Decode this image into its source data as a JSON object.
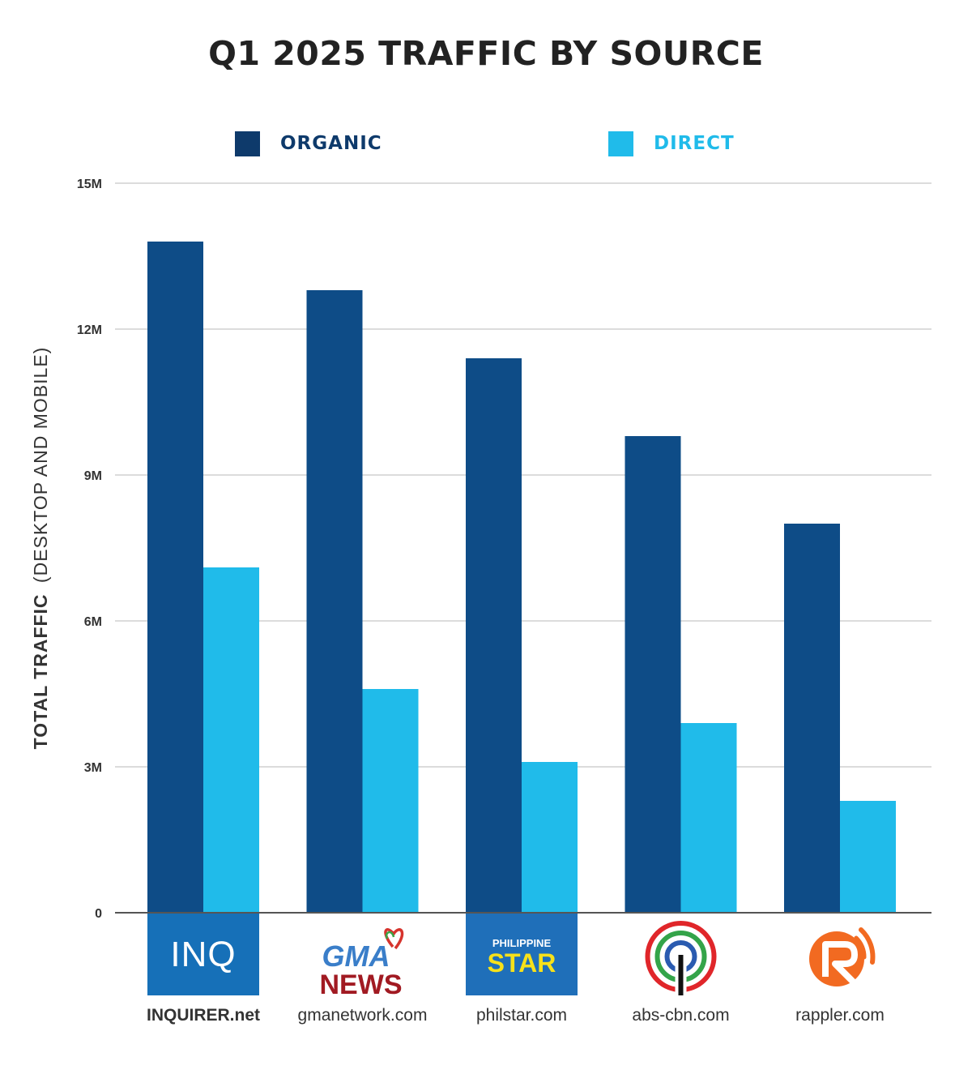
{
  "chart_data": {
    "type": "bar",
    "title": "Q1 2025 TRAFFIC BY SOURCE",
    "ylabel_bold": "TOTAL TRAFFIC",
    "ylabel_rest": "(DESKTOP AND MOBILE)",
    "ylim": [
      0,
      15000000
    ],
    "yticks": [
      0,
      3000000,
      6000000,
      9000000,
      12000000,
      15000000
    ],
    "ytick_labels": [
      "0",
      "3M",
      "6M",
      "9M",
      "12M",
      "15M"
    ],
    "grid": true,
    "legend_position": "top",
    "categories": [
      "INQUIRER.net",
      "gmanetwork.com",
      "philstar.com",
      "abs-cbn.com",
      "rappler.com"
    ],
    "series": [
      {
        "name": "ORGANIC",
        "color": "#0e4c87",
        "values": [
          13800000,
          12800000,
          11400000,
          9800000,
          8000000
        ]
      },
      {
        "name": "DIRECT",
        "color": "#20bbea",
        "values": [
          7100000,
          4600000,
          3100000,
          3900000,
          2300000
        ]
      }
    ],
    "logos": [
      {
        "name": "inquirer-logo",
        "text": "INQ"
      },
      {
        "name": "gma-news-logo",
        "text_top": "GMA",
        "text_bottom": "NEWS"
      },
      {
        "name": "philstar-logo",
        "text_top": "PHILIPPINE",
        "text_bottom": "STAR"
      },
      {
        "name": "abs-cbn-logo"
      },
      {
        "name": "rappler-logo"
      }
    ]
  },
  "colors": {
    "title": "#222222",
    "organic_legend_text": "#0e3a6b",
    "direct_legend_text": "#20bbea",
    "gridline": "#c8c8c8",
    "axis": "#555555"
  }
}
